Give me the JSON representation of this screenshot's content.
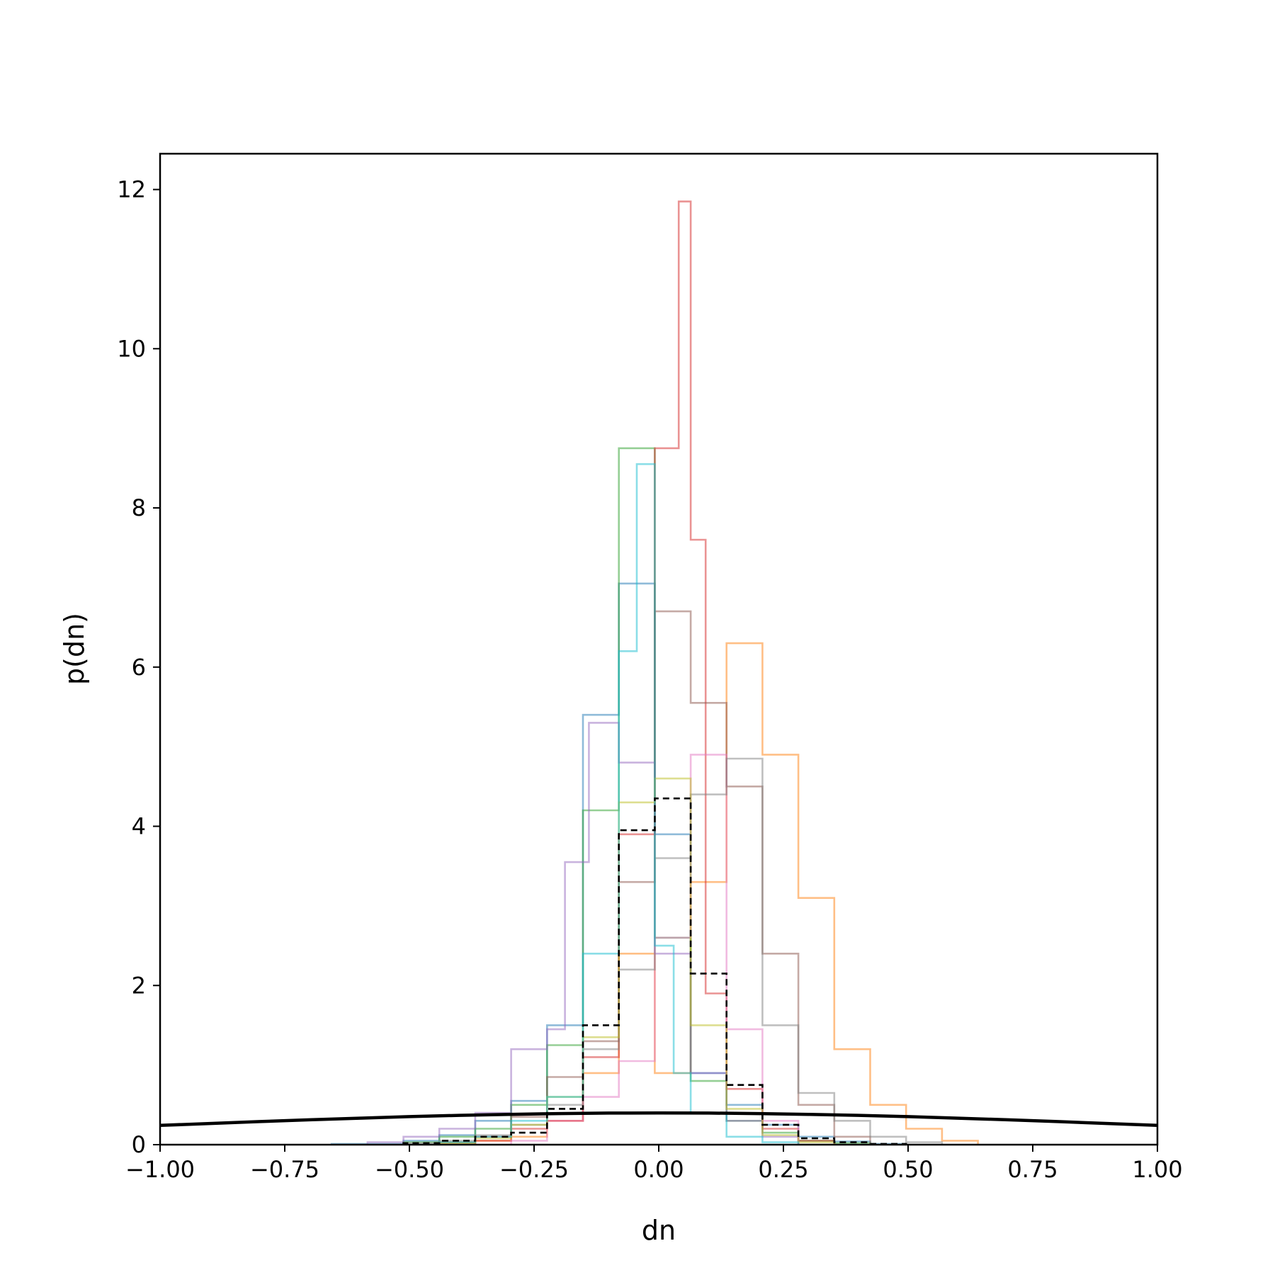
{
  "chart_data": {
    "type": "histogram",
    "xlabel": "dn",
    "ylabel": "p(dn)",
    "xlim": [
      -1.0,
      1.0
    ],
    "ylim": [
      0,
      12.45
    ],
    "x_ticks": [
      -1.0,
      -0.75,
      -0.5,
      -0.25,
      0.0,
      0.25,
      0.5,
      0.75,
      1.0
    ],
    "x_tick_labels": [
      "−1.00",
      "−0.75",
      "−0.50",
      "−0.25",
      "0.00",
      "0.25",
      "0.50",
      "0.75",
      "1.00"
    ],
    "y_ticks": [
      0,
      2,
      4,
      6,
      8,
      10,
      12
    ],
    "y_tick_labels": [
      "0",
      "2",
      "4",
      "6",
      "8",
      "10",
      "12"
    ],
    "grid": false,
    "legend": false,
    "series": [
      {
        "color": "#1f77b4",
        "style": "step",
        "edges": [
          -0.656,
          -0.512,
          -0.44,
          -0.368,
          -0.296,
          -0.224,
          -0.152,
          -0.08,
          -0.008,
          0.064,
          0.136,
          0.208,
          0.28,
          0.352,
          0.424,
          0.496
        ],
        "values": [
          0.01,
          0.05,
          0.12,
          0.3,
          0.55,
          1.5,
          5.4,
          7.05,
          3.9,
          0.9,
          0.5,
          0.25,
          0.1,
          0.04,
          0.01
        ]
      },
      {
        "color": "#ff7f0e",
        "style": "step",
        "edges": [
          -0.44,
          -0.368,
          -0.296,
          -0.224,
          -0.152,
          -0.08,
          -0.008,
          0.064,
          0.136,
          0.208,
          0.28,
          0.352,
          0.424,
          0.496,
          0.568,
          0.64
        ],
        "values": [
          0.02,
          0.05,
          0.1,
          0.3,
          0.9,
          2.4,
          0.9,
          3.3,
          6.3,
          4.9,
          3.1,
          1.2,
          0.5,
          0.2,
          0.05
        ]
      },
      {
        "color": "#2ca02c",
        "style": "step",
        "edges": [
          -0.512,
          -0.44,
          -0.368,
          -0.296,
          -0.224,
          -0.152,
          -0.08,
          -0.008,
          0.064,
          0.136,
          0.208,
          0.28,
          0.352,
          0.424
        ],
        "values": [
          0.03,
          0.1,
          0.2,
          0.5,
          1.25,
          4.2,
          8.75,
          2.6,
          0.8,
          0.3,
          0.15,
          0.05,
          0.02
        ]
      },
      {
        "color": "#d62728",
        "style": "step",
        "edges": [
          -0.368,
          -0.296,
          -0.224,
          -0.152,
          -0.08,
          -0.008,
          0.04,
          0.064,
          0.094,
          0.136,
          0.208,
          0.28,
          0.352
        ],
        "values": [
          0.05,
          0.2,
          0.3,
          1.1,
          3.9,
          8.75,
          11.85,
          7.6,
          1.9,
          0.7,
          0.2,
          0.05
        ]
      },
      {
        "color": "#9467bd",
        "style": "step",
        "edges": [
          -0.584,
          -0.512,
          -0.44,
          -0.368,
          -0.296,
          -0.224,
          -0.188,
          -0.14,
          -0.08,
          -0.008,
          0.064,
          0.136,
          0.208,
          0.28
        ],
        "values": [
          0.03,
          0.1,
          0.2,
          0.4,
          1.2,
          1.45,
          3.55,
          5.3,
          4.8,
          2.4,
          0.9,
          0.3,
          0.1
        ]
      },
      {
        "color": "#8c564b",
        "style": "step",
        "edges": [
          -0.44,
          -0.368,
          -0.296,
          -0.224,
          -0.152,
          -0.08,
          -0.008,
          0.064,
          0.136,
          0.208,
          0.28,
          0.352,
          0.424
        ],
        "values": [
          0.03,
          0.1,
          0.35,
          0.85,
          1.3,
          3.3,
          6.7,
          5.55,
          4.5,
          2.4,
          0.5,
          0.1
        ]
      },
      {
        "color": "#e377c2",
        "style": "step",
        "edges": [
          -0.296,
          -0.224,
          -0.152,
          -0.08,
          -0.008,
          0.064,
          0.136,
          0.208,
          0.28
        ],
        "values": [
          0.05,
          0.3,
          0.6,
          1.05,
          2.6,
          4.9,
          1.45,
          0.3
        ]
      },
      {
        "color": "#7f7f7f",
        "style": "step",
        "edges": [
          -0.512,
          -0.44,
          -0.368,
          -0.296,
          -0.224,
          -0.152,
          -0.08,
          -0.008,
          0.064,
          0.136,
          0.208,
          0.28,
          0.352,
          0.424,
          0.496,
          0.568
        ],
        "values": [
          0.02,
          0.05,
          0.12,
          0.25,
          0.5,
          1.2,
          2.2,
          3.6,
          4.4,
          4.85,
          1.5,
          0.65,
          0.3,
          0.1,
          0.03
        ]
      },
      {
        "color": "#bcbd22",
        "style": "step",
        "edges": [
          -0.44,
          -0.368,
          -0.296,
          -0.224,
          -0.152,
          -0.08,
          -0.008,
          0.064,
          0.136,
          0.208,
          0.28,
          0.352
        ],
        "values": [
          0.02,
          0.08,
          0.25,
          0.6,
          1.35,
          4.3,
          4.6,
          1.5,
          0.45,
          0.12,
          0.03
        ]
      },
      {
        "color": "#17becf",
        "style": "step",
        "edges": [
          -0.44,
          -0.368,
          -0.296,
          -0.224,
          -0.152,
          -0.08,
          -0.044,
          -0.008,
          0.03,
          0.064,
          0.136,
          0.208,
          0.28
        ],
        "values": [
          0.03,
          0.1,
          0.3,
          0.6,
          2.4,
          6.2,
          8.55,
          2.5,
          0.9,
          0.4,
          0.1,
          0.03
        ]
      },
      {
        "color": "#000000",
        "style": "step-dashed",
        "opacity": 1,
        "edges": [
          -0.512,
          -0.44,
          -0.368,
          -0.296,
          -0.224,
          -0.152,
          -0.08,
          -0.008,
          0.064,
          0.136,
          0.208,
          0.28,
          0.352,
          0.424,
          0.496
        ],
        "values": [
          0.02,
          0.05,
          0.1,
          0.15,
          0.45,
          1.5,
          3.95,
          4.35,
          2.15,
          0.75,
          0.25,
          0.08,
          0.03,
          0.01
        ]
      },
      {
        "color": "#000000",
        "style": "curve",
        "opacity": 1,
        "x": [
          -1.0,
          -0.9,
          -0.8,
          -0.7,
          -0.6,
          -0.5,
          -0.4,
          -0.3,
          -0.2,
          -0.1,
          0.0,
          0.1,
          0.2,
          0.3,
          0.4,
          0.5,
          0.6,
          0.7,
          0.8,
          0.9,
          1.0
        ],
        "values": [
          0.242,
          0.266,
          0.29,
          0.312,
          0.333,
          0.352,
          0.368,
          0.381,
          0.391,
          0.397,
          0.399,
          0.397,
          0.391,
          0.381,
          0.368,
          0.352,
          0.333,
          0.312,
          0.29,
          0.266,
          0.242
        ]
      }
    ]
  }
}
